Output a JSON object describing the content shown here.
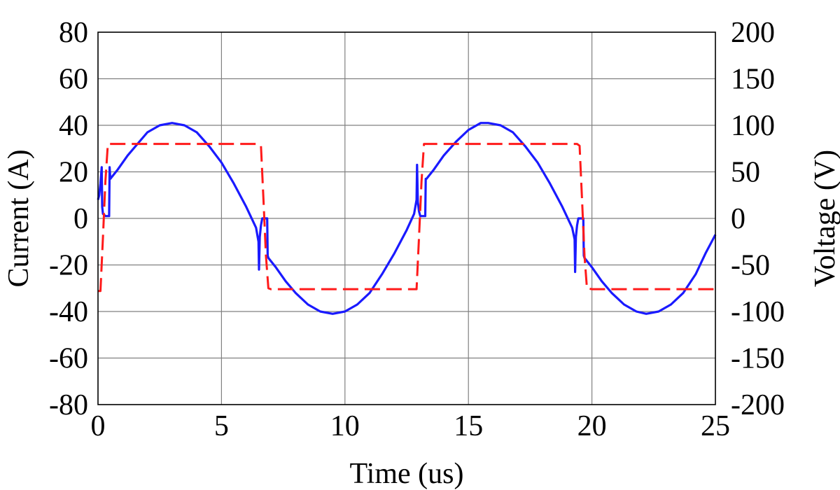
{
  "chart_data": {
    "type": "line",
    "title": "",
    "xlabel": "Time (us)",
    "ylabel_left": "Current (A)",
    "ylabel_right": "Voltage (V)",
    "xlim": [
      0,
      25
    ],
    "ylim_left": [
      -80,
      80
    ],
    "ylim_right": [
      -200,
      200
    ],
    "x_ticks": [
      0,
      5,
      10,
      15,
      20,
      25
    ],
    "y_left_ticks": [
      -80,
      -60,
      -40,
      -20,
      0,
      20,
      40,
      60,
      80
    ],
    "y_right_ticks": [
      -200,
      -150,
      -100,
      -50,
      0,
      50,
      100,
      150,
      200
    ],
    "grid": true,
    "series": [
      {
        "axis": "left",
        "color": "#1a1aff",
        "style": "solid",
        "points": [
          [
            0.0,
            8
          ],
          [
            0.05,
            10
          ],
          [
            0.1,
            15
          ],
          [
            0.15,
            22
          ],
          [
            0.17,
            5
          ],
          [
            0.2,
            2
          ],
          [
            0.3,
            1
          ],
          [
            0.4,
            1
          ],
          [
            0.45,
            1
          ],
          [
            0.47,
            22
          ],
          [
            0.5,
            17
          ],
          [
            0.8,
            21
          ],
          [
            1.2,
            27
          ],
          [
            1.6,
            32
          ],
          [
            2.0,
            37
          ],
          [
            2.5,
            40
          ],
          [
            3.0,
            41
          ],
          [
            3.5,
            40
          ],
          [
            4.0,
            37
          ],
          [
            4.5,
            31
          ],
          [
            5.0,
            24
          ],
          [
            5.5,
            15
          ],
          [
            6.0,
            5
          ],
          [
            6.4,
            -4
          ],
          [
            6.5,
            -10
          ],
          [
            6.52,
            -22
          ],
          [
            6.55,
            -8
          ],
          [
            6.6,
            -3
          ],
          [
            6.65,
            0
          ],
          [
            6.75,
            0
          ],
          [
            6.85,
            0
          ],
          [
            6.87,
            -16
          ],
          [
            6.9,
            -17
          ],
          [
            7.2,
            -21
          ],
          [
            7.6,
            -27
          ],
          [
            8.0,
            -32
          ],
          [
            8.5,
            -37
          ],
          [
            9.0,
            -40
          ],
          [
            9.5,
            -41
          ],
          [
            10.0,
            -40
          ],
          [
            10.5,
            -37
          ],
          [
            11.0,
            -32
          ],
          [
            11.5,
            -24
          ],
          [
            12.0,
            -15
          ],
          [
            12.5,
            -5
          ],
          [
            12.8,
            2
          ],
          [
            12.9,
            8
          ],
          [
            12.92,
            23
          ],
          [
            12.95,
            7
          ],
          [
            13.0,
            3
          ],
          [
            13.05,
            1
          ],
          [
            13.15,
            1
          ],
          [
            13.25,
            1
          ],
          [
            13.27,
            17
          ],
          [
            13.3,
            17
          ],
          [
            13.6,
            21
          ],
          [
            14.0,
            27
          ],
          [
            14.5,
            33
          ],
          [
            15.0,
            38
          ],
          [
            15.5,
            41
          ],
          [
            15.8,
            41
          ],
          [
            16.3,
            40
          ],
          [
            16.8,
            37
          ],
          [
            17.3,
            31
          ],
          [
            17.8,
            24
          ],
          [
            18.3,
            15
          ],
          [
            18.8,
            5
          ],
          [
            19.2,
            -4
          ],
          [
            19.3,
            -9
          ],
          [
            19.32,
            -23
          ],
          [
            19.35,
            -8
          ],
          [
            19.4,
            -3
          ],
          [
            19.45,
            0
          ],
          [
            19.55,
            0
          ],
          [
            19.65,
            0
          ],
          [
            19.67,
            -16
          ],
          [
            19.7,
            -17
          ],
          [
            20.0,
            -21
          ],
          [
            20.4,
            -27
          ],
          [
            20.8,
            -32
          ],
          [
            21.3,
            -37
          ],
          [
            21.8,
            -40
          ],
          [
            22.2,
            -41
          ],
          [
            22.7,
            -40
          ],
          [
            23.2,
            -37
          ],
          [
            23.7,
            -32
          ],
          [
            24.2,
            -24
          ],
          [
            24.6,
            -15
          ],
          [
            25.0,
            -7
          ]
        ]
      },
      {
        "axis": "right",
        "color": "#ff1a1a",
        "style": "dashed",
        "points": [
          [
            0.0,
            -78
          ],
          [
            0.1,
            -78
          ],
          [
            0.2,
            -20
          ],
          [
            0.3,
            40
          ],
          [
            0.4,
            80
          ],
          [
            0.5,
            80
          ],
          [
            3.0,
            80
          ],
          [
            6.5,
            80
          ],
          [
            6.6,
            78
          ],
          [
            6.7,
            20
          ],
          [
            6.8,
            -40
          ],
          [
            6.9,
            -75
          ],
          [
            7.0,
            -76
          ],
          [
            10.0,
            -76
          ],
          [
            12.9,
            -76
          ],
          [
            13.0,
            -20
          ],
          [
            13.1,
            40
          ],
          [
            13.2,
            80
          ],
          [
            13.3,
            80
          ],
          [
            16.0,
            80
          ],
          [
            19.4,
            80
          ],
          [
            19.5,
            78
          ],
          [
            19.6,
            20
          ],
          [
            19.7,
            -40
          ],
          [
            19.8,
            -75
          ],
          [
            20.0,
            -76
          ],
          [
            22.0,
            -76
          ],
          [
            25.0,
            -76
          ]
        ]
      }
    ]
  }
}
